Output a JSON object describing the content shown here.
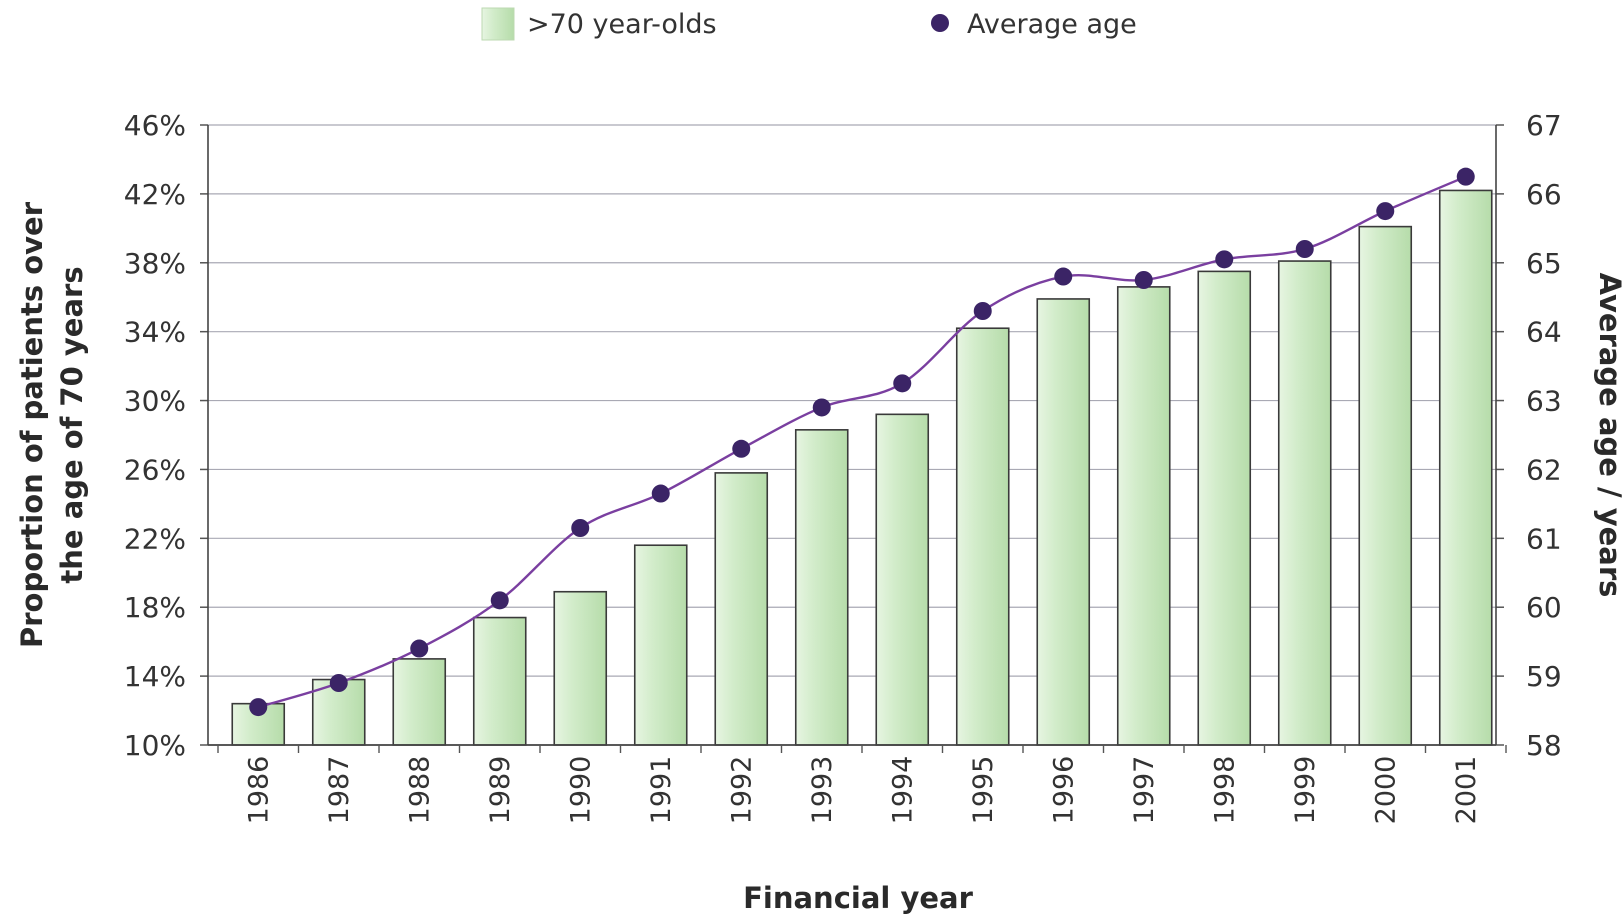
{
  "chart_data": {
    "type": "bar",
    "title": "",
    "xlabel": "Financial year",
    "ylabel": "Proportion of patients over the age of 70 years",
    "ylabel_lines": [
      "Proportion of patients over",
      "the age of 70 years"
    ],
    "y2label": "Average age / years",
    "categories": [
      "1986",
      "1987",
      "1988",
      "1989",
      "1990",
      "1991",
      "1992",
      "1993",
      "1994",
      "1995",
      "1996",
      "1997",
      "1998",
      "1999",
      "2000",
      "2001"
    ],
    "ylim": [
      10,
      46
    ],
    "y_ticks": [
      10,
      14,
      18,
      22,
      26,
      30,
      34,
      38,
      42,
      46
    ],
    "y_tick_labels": [
      "10%",
      "14%",
      "18%",
      "22%",
      "26%",
      "30%",
      "34%",
      "38%",
      "42%",
      "46%"
    ],
    "y2lim": [
      58,
      67
    ],
    "y2_ticks": [
      58,
      59,
      60,
      61,
      62,
      63,
      64,
      65,
      66,
      67
    ],
    "y2_tick_labels": [
      "58",
      "59",
      "60",
      "61",
      "62",
      "63",
      "64",
      "65",
      "66",
      "67"
    ],
    "grid": true,
    "legend_position": "top",
    "series": [
      {
        "name": ">70 year-olds",
        "type": "bar",
        "axis": "left",
        "color": "#c8e6c0",
        "values": [
          12.4,
          13.8,
          15.0,
          17.4,
          18.9,
          21.6,
          25.8,
          28.3,
          29.2,
          34.2,
          35.9,
          36.6,
          37.5,
          38.1,
          40.1,
          42.2
        ]
      },
      {
        "name": "Average age",
        "type": "line",
        "axis": "right",
        "color": "#3b2466",
        "line_color": "#7a3fa0",
        "values": [
          58.55,
          58.9,
          59.4,
          60.1,
          61.15,
          61.65,
          62.3,
          62.9,
          63.25,
          64.3,
          64.8,
          64.75,
          65.05,
          65.2,
          65.75,
          66.25
        ]
      }
    ]
  }
}
